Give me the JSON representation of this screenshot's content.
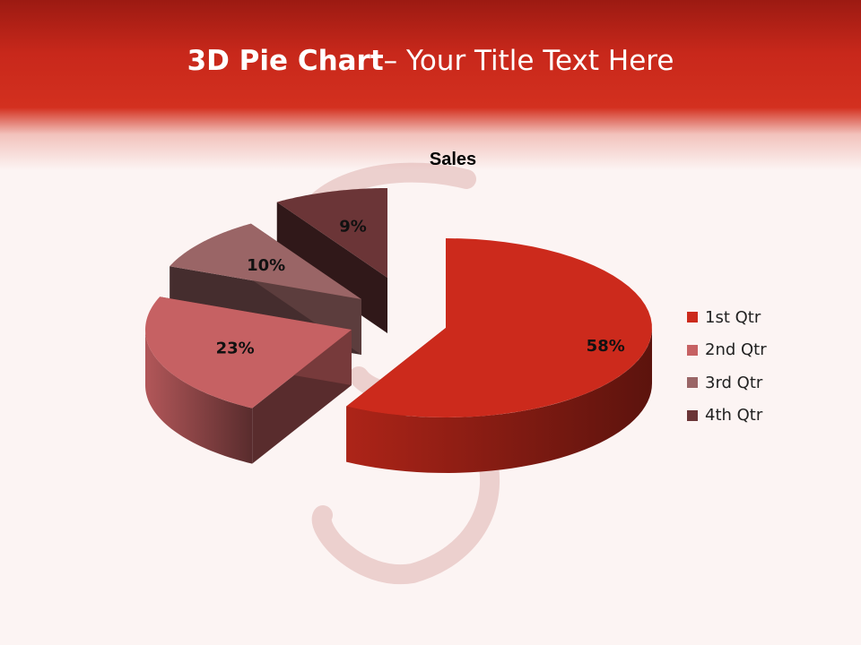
{
  "slide": {
    "title_bold": "3D Pie Chart",
    "title_rest": "– Your Title Text Here"
  },
  "chart_data": {
    "type": "pie",
    "style": "3d-exploded",
    "title": "Sales",
    "categories": [
      "1st Qtr",
      "2nd Qtr",
      "3rd Qtr",
      "4th Qtr"
    ],
    "values": [
      58,
      23,
      10,
      9
    ],
    "labels": [
      "58%",
      "23%",
      "10%",
      "9%"
    ],
    "colors": [
      "#cc2a1c",
      "#c66163",
      "#9a6566",
      "#6b3537"
    ],
    "legend_position": "right"
  }
}
